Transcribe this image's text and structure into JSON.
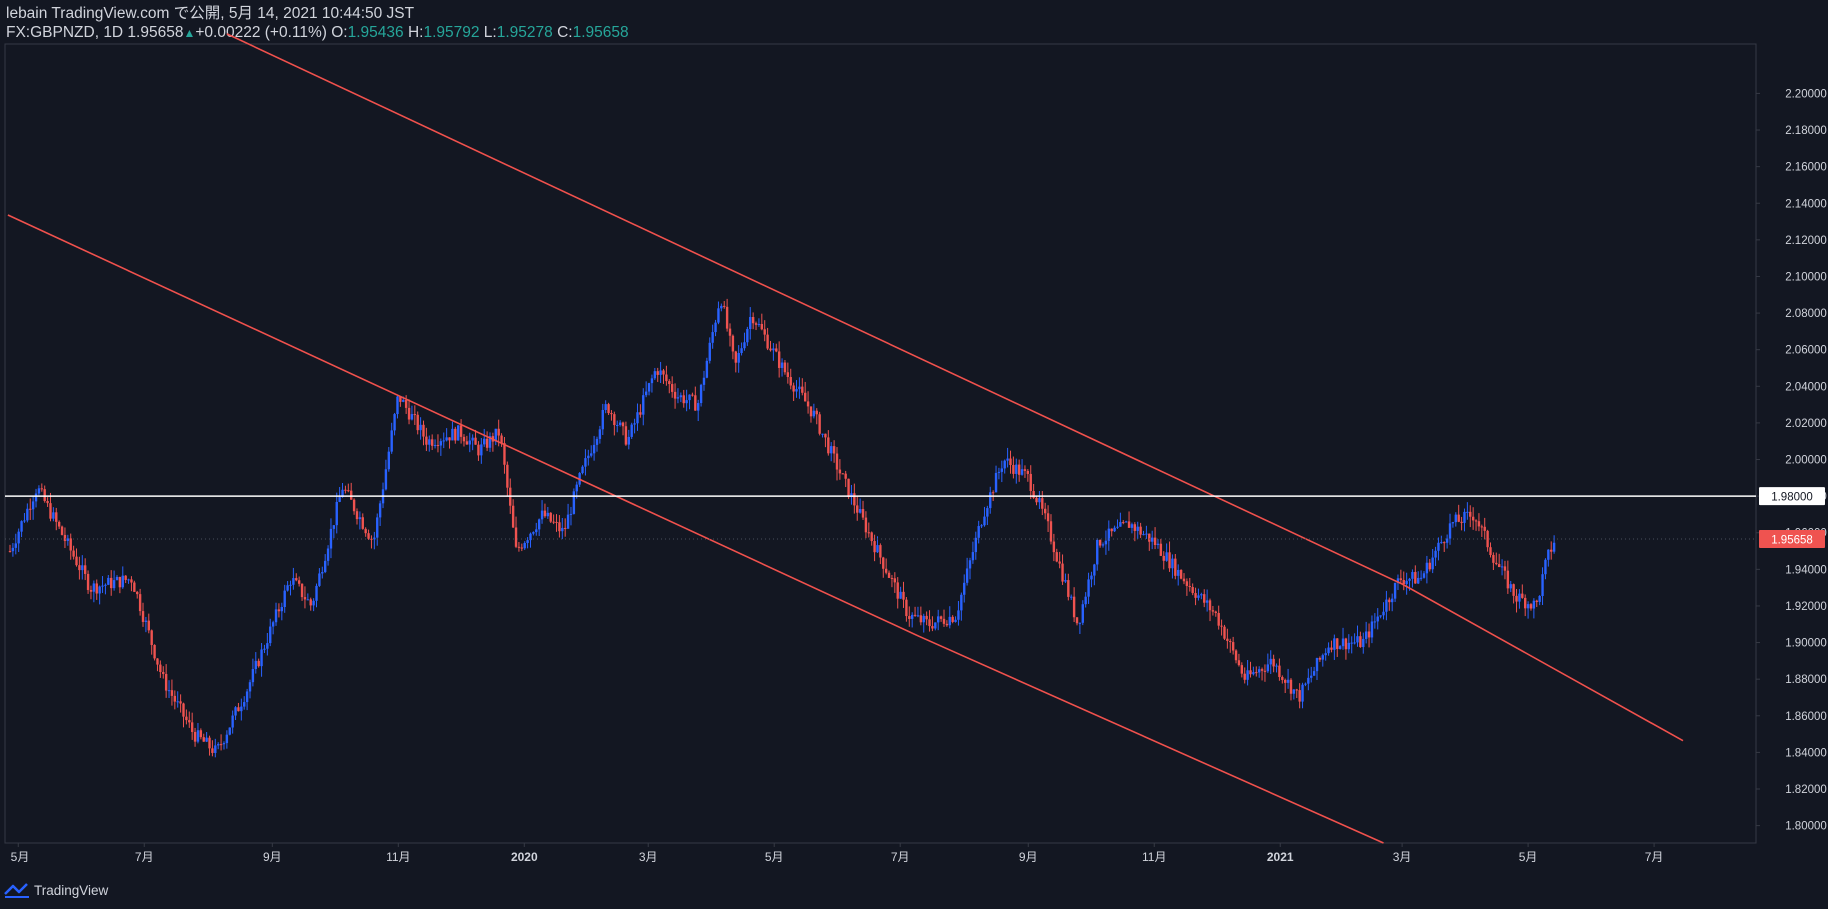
{
  "header": {
    "line1": "lebain TradingView.com で公開, 5月 14, 2021 10:44:50 JST",
    "symbol_line": "FX:GBPNZD, 1D 1.95658",
    "change": "+0.00222 (+0.11%)",
    "o_label": "O:",
    "o_value": "1.95436",
    "h_label": "H:",
    "h_value": "1.95792",
    "l_label": "L:",
    "l_value": "1.95278",
    "c_label": "C:",
    "c_value": "1.95658"
  },
  "footer": {
    "brand": "TradingView",
    "logo_icon": "tradingview-logo-icon"
  },
  "colors": {
    "background": "#131722",
    "up": "#2962ff",
    "down": "#ef5350",
    "trendline": "#f0514d",
    "level": "#ffffff",
    "axis_text": "#d1d4dc"
  },
  "chart_data": {
    "type": "candlestick",
    "symbol": "FX:GBPNZD",
    "interval": "1D",
    "x_tick_labels": [
      "5月",
      "7月",
      "9月",
      "11月",
      "2020",
      "3月",
      "5月",
      "7月",
      "9月",
      "11月",
      "2021",
      "3月",
      "5月",
      "7月"
    ],
    "y_tick_labels": [
      "2.20000",
      "2.18000",
      "2.16000",
      "2.14000",
      "2.12000",
      "2.10000",
      "2.08000",
      "2.06000",
      "2.04000",
      "2.02000",
      "2.00000",
      "1.98000",
      "1.96000",
      "1.94000",
      "1.92000",
      "1.90000",
      "1.88000",
      "1.86000",
      "1.84000",
      "1.82000",
      "1.80000"
    ],
    "ylim": [
      1.7905,
      2.227
    ],
    "horizontal_level": {
      "value": 1.98,
      "label": "1.98000"
    },
    "last_price": {
      "value": 1.95658,
      "label": "1.95658"
    },
    "close_path": [
      [
        "2019-04-27",
        1.95
      ],
      [
        "2019-05-10",
        1.985
      ],
      [
        "2019-06-05",
        1.93
      ],
      [
        "2019-06-25",
        1.935
      ],
      [
        "2019-07-10",
        1.88
      ],
      [
        "2019-07-25",
        1.85
      ],
      [
        "2019-08-05",
        1.84
      ],
      [
        "2019-08-20",
        1.875
      ],
      [
        "2019-09-10",
        1.935
      ],
      [
        "2019-09-20",
        1.92
      ],
      [
        "2019-10-05",
        1.985
      ],
      [
        "2019-10-20",
        1.955
      ],
      [
        "2019-11-01",
        2.035
      ],
      [
        "2019-11-15",
        2.01
      ],
      [
        "2019-12-01",
        2.015
      ],
      [
        "2019-12-10",
        2.005
      ],
      [
        "2019-12-20",
        2.015
      ],
      [
        "2019-12-28",
        1.95
      ],
      [
        "2020-01-10",
        1.97
      ],
      [
        "2020-01-20",
        1.96
      ],
      [
        "2020-01-28",
        1.99
      ],
      [
        "2020-02-10",
        2.03
      ],
      [
        "2020-02-20",
        2.01
      ],
      [
        "2020-03-05",
        2.05
      ],
      [
        "2020-03-15",
        2.035
      ],
      [
        "2020-03-25",
        2.03
      ],
      [
        "2020-04-05",
        2.09
      ],
      [
        "2020-04-12",
        2.05
      ],
      [
        "2020-04-20",
        2.08
      ],
      [
        "2020-05-05",
        2.05
      ],
      [
        "2020-05-20",
        2.025
      ],
      [
        "2020-06-05",
        1.985
      ],
      [
        "2020-06-20",
        1.95
      ],
      [
        "2020-07-05",
        1.915
      ],
      [
        "2020-07-15",
        1.91
      ],
      [
        "2020-07-28",
        1.915
      ],
      [
        "2020-08-10",
        1.97
      ],
      [
        "2020-08-20",
        2.0
      ],
      [
        "2020-09-01",
        1.99
      ],
      [
        "2020-09-10",
        1.965
      ],
      [
        "2020-09-25",
        1.91
      ],
      [
        "2020-10-05",
        1.955
      ],
      [
        "2020-10-20",
        1.965
      ],
      [
        "2020-11-01",
        1.955
      ],
      [
        "2020-11-15",
        1.935
      ],
      [
        "2020-12-01",
        1.915
      ],
      [
        "2020-12-15",
        1.88
      ],
      [
        "2020-12-28",
        1.89
      ],
      [
        "2021-01-10",
        1.87
      ],
      [
        "2021-01-25",
        1.9
      ],
      [
        "2021-02-10",
        1.9
      ],
      [
        "2021-02-28",
        1.935
      ],
      [
        "2021-03-10",
        1.935
      ],
      [
        "2021-03-25",
        1.965
      ],
      [
        "2021-04-05",
        1.97
      ],
      [
        "2021-04-15",
        1.945
      ],
      [
        "2021-04-25",
        1.925
      ],
      [
        "2021-05-05",
        1.92
      ],
      [
        "2021-05-10",
        1.945
      ],
      [
        "2021-05-14",
        1.9566
      ]
    ],
    "trendlines": [
      {
        "name": "upper",
        "points": [
          [
            "2019-08-10",
            2.2325
          ],
          [
            "2021-03-01",
            1.932
          ],
          [
            "2021-07-15",
            1.8464
          ]
        ]
      },
      {
        "name": "lower",
        "points": [
          [
            "2019-04-26",
            2.1336
          ],
          [
            "2020-07-10",
            1.9035
          ],
          [
            "2021-02-20",
            1.7905
          ]
        ]
      }
    ],
    "grid": false,
    "legend": "none"
  }
}
